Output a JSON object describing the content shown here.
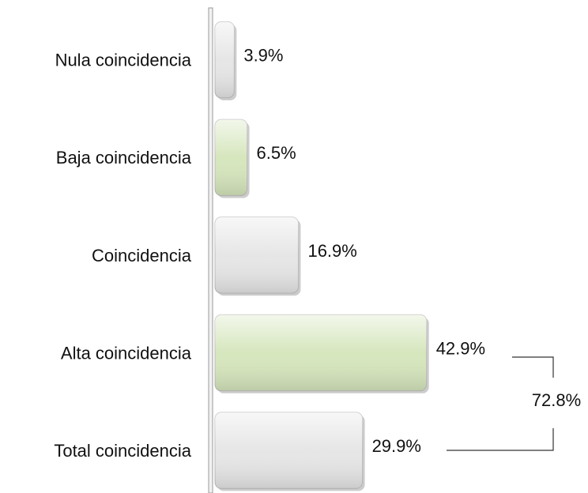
{
  "chart_data": {
    "type": "bar",
    "orientation": "horizontal",
    "categories": [
      "Nula coincidencia",
      "Baja coincidencia",
      "Coincidencia",
      "Alta coincidencia",
      "Total coincidencia"
    ],
    "values": [
      3.9,
      6.5,
      16.9,
      42.9,
      29.9
    ],
    "value_labels": [
      "3.9%",
      "6.5%",
      "16.9%",
      "42.9%",
      "29.9%"
    ],
    "colors": [
      "#e6e6e6",
      "#d6e6bd",
      "#e6e6e6",
      "#d6e6bd",
      "#e6e6e6"
    ],
    "xlim": [
      0,
      50
    ],
    "annotation": {
      "value": 72.8,
      "label": "72.8%"
    }
  }
}
